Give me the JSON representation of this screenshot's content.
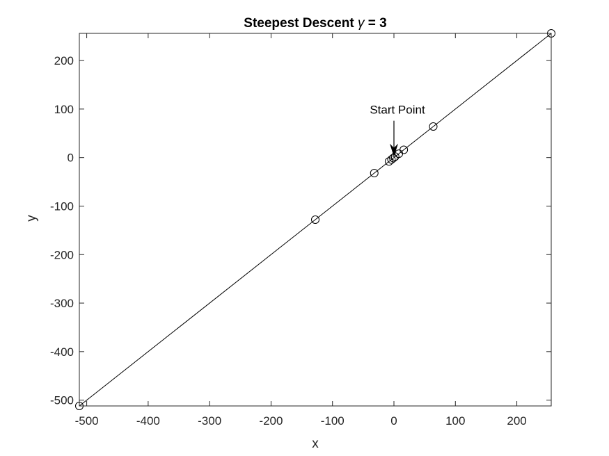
{
  "chart_data": {
    "type": "line",
    "title": "Steepest Descent γ = 3",
    "title_prefix": "Steepest Descent ",
    "title_symbol": "γ",
    "title_suffix": " = 3",
    "xlabel": "x",
    "ylabel": "y",
    "xlim": [
      -512,
      256
    ],
    "ylim": [
      -512,
      256
    ],
    "xticks": [
      -500,
      -400,
      -300,
      -200,
      -100,
      0,
      100,
      200
    ],
    "yticks": [
      200,
      100,
      0,
      -100,
      -200,
      -300,
      -400,
      -500
    ],
    "grid": false,
    "series": [
      {
        "marker": "circle",
        "x": [
          -1,
          2,
          -4,
          8,
          -8,
          16,
          -32,
          64,
          -128,
          256,
          -512
        ],
        "y": [
          -1,
          2,
          -4,
          8,
          -8,
          16,
          -32,
          64,
          -128,
          256,
          -512
        ],
        "line_x": [
          -512,
          256
        ],
        "line_y": [
          -512,
          256
        ]
      }
    ],
    "annotations": [
      {
        "text": "Start Point",
        "arrow_to": [
          0,
          0
        ]
      }
    ]
  }
}
